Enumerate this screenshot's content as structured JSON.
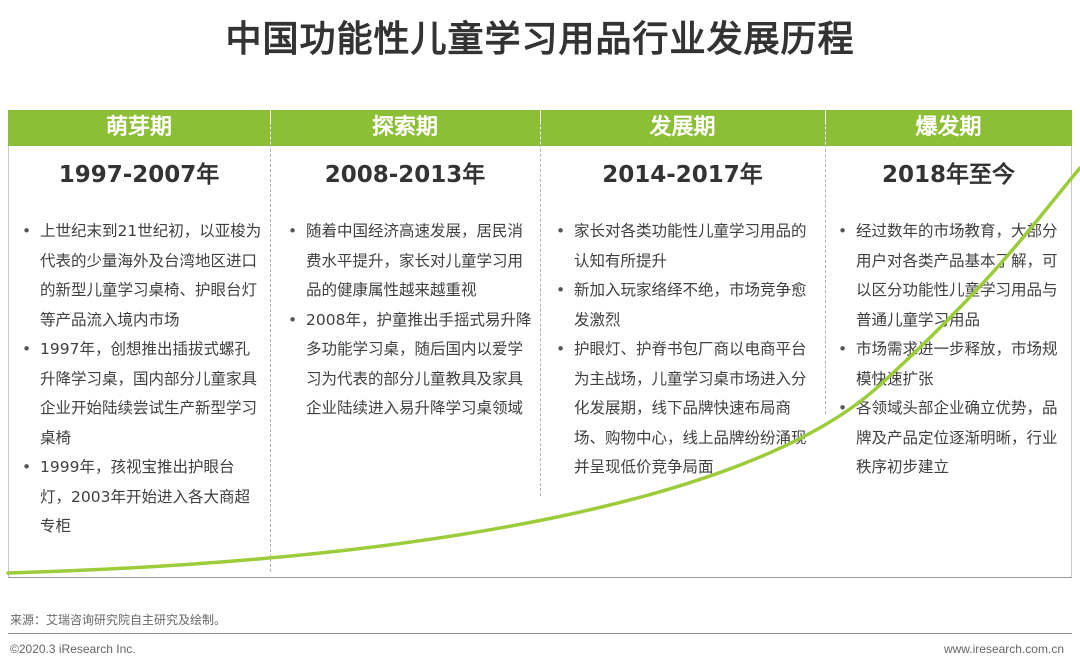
{
  "title": "中国功能性儿童学习用品行业发展历程",
  "colors": {
    "accent": "#8cbf35",
    "curve": "#9ccc3a"
  },
  "phases": [
    {
      "label": "萌芽期",
      "years": "1997-2007年",
      "bullets": [
        "上世纪末到21世纪初，以亚梭为代表的少量海外及台湾地区进口的新型儿童学习桌椅、护眼台灯等产品流入境内市场",
        "1997年，创想推出插拔式螺孔升降学习桌，国内部分儿童家具企业开始陆续尝试生产新型学习桌椅",
        "1999年，孩视宝推出护眼台灯，2003年开始进入各大商超专柜"
      ]
    },
    {
      "label": "探索期",
      "years": "2008-2013年",
      "bullets": [
        "随着中国经济高速发展，居民消费水平提升，家长对儿童学习用品的健康属性越来越重视",
        "2008年，护童推出手摇式易升降多功能学习桌，随后国内以爱学习为代表的部分儿童教具及家具企业陆续进入易升降学习桌领域"
      ]
    },
    {
      "label": "发展期",
      "years": "2014-2017年",
      "bullets": [
        "家长对各类功能性儿童学习用品的认知有所提升",
        "新加入玩家络绎不绝，市场竞争愈发激烈",
        "护眼灯、护脊书包厂商以电商平台为主战场，儿童学习桌市场进入分化发展期，线下品牌快速布局商场、购物中心，线上品牌纷纷涌现并呈现低价竞争局面"
      ]
    },
    {
      "label": "爆发期",
      "years": "2018年至今",
      "bullets": [
        "经过数年的市场教育，大部分用户对各类产品基本了解，可以区分功能性儿童学习用品与普通儿童学习用品",
        "市场需求进一步释放，市场规模快速扩张",
        "各领域头部企业确立优势，品牌及产品定位逐渐明晰，行业秩序初步建立"
      ]
    }
  ],
  "source": "来源：艾瑞咨询研究院自主研究及绘制。",
  "copyright": "©2020.3 iResearch Inc.",
  "website": "www.iresearch.com.cn"
}
